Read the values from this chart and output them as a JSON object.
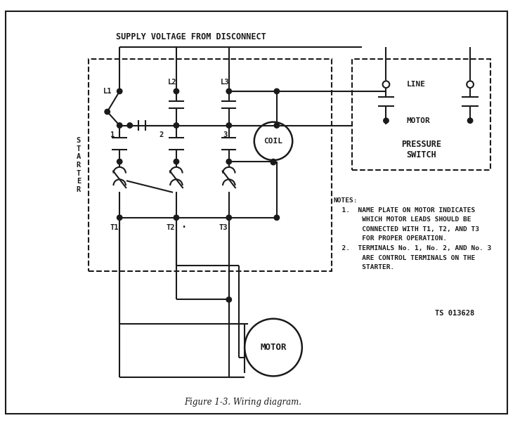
{
  "bg": "#ffffff",
  "lc": "#1a1a1a",
  "title": "Figure 1-3. Wiring diagram.",
  "supply_label": "SUPPLY VOLTAGE FROM DISCONNECT",
  "starter_label": "S\nT\nA\nR\nT\nE\nR",
  "ps_label": "PRESSURE\nSWITCH",
  "line_lbl": "LINE",
  "motor_ps_lbl": "MOTOR",
  "coil_lbl": "COIL",
  "motor_lbl": "MOTOR",
  "ts": "TS 013628",
  "notes": [
    "NOTES:",
    "  1.  NAME PLATE ON MOTOR INDICATES",
    "       WHICH MOTOR LEADS SHOULD BE",
    "       CONNECTED WITH T1, T2, AND T3",
    "       FOR PROPER OPERATION.",
    "  2.  TERMINALS No. 1, No. 2, AND No. 3",
    "       ARE CONTROL TERMINALS ON THE",
    "       STARTER."
  ]
}
